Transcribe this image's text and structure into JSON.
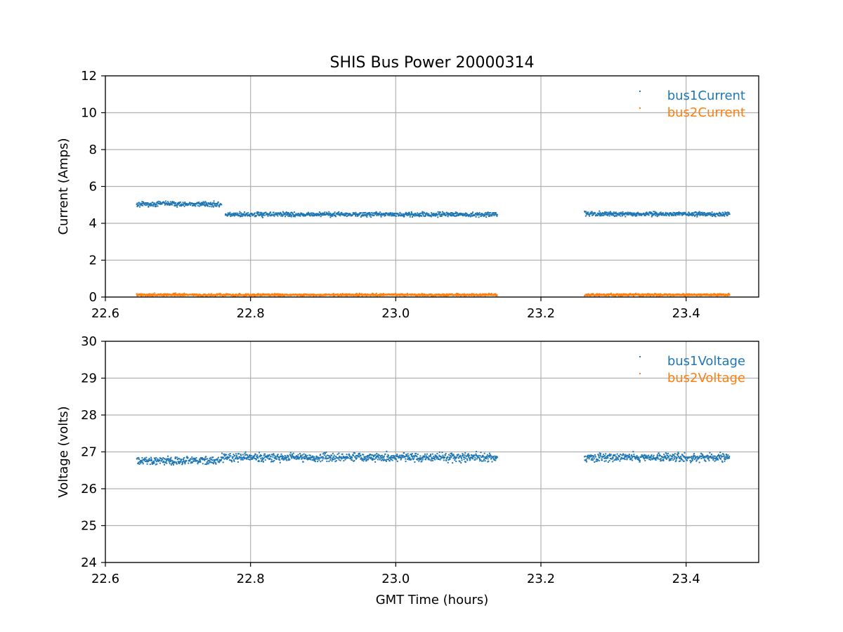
{
  "chart_data": [
    {
      "type": "scatter",
      "title": "SHIS Bus Power 20000314",
      "xlabel": "",
      "ylabel": "Current (Amps)",
      "xlim": [
        22.6,
        23.5
      ],
      "ylim": [
        0,
        12
      ],
      "xticks": [
        "22.6",
        "22.8",
        "23.0",
        "23.2",
        "23.4"
      ],
      "yticks": [
        "0",
        "2",
        "4",
        "6",
        "8",
        "10",
        "12"
      ],
      "grid": true,
      "legend": "top-right",
      "series": [
        {
          "name": "bus1Current",
          "color": "#1f77b4",
          "segments": [
            {
              "x_start": 22.643,
              "x_end": 22.76,
              "mean": 5.05,
              "spread": 0.13
            },
            {
              "x_start": 22.765,
              "x_end": 23.14,
              "mean": 4.48,
              "spread": 0.12
            },
            {
              "x_start": 23.26,
              "x_end": 23.46,
              "mean": 4.5,
              "spread": 0.12
            }
          ]
        },
        {
          "name": "bus2Current",
          "color": "#ff7f0e",
          "segments": [
            {
              "x_start": 22.643,
              "x_end": 23.14,
              "mean": 0.12,
              "spread": 0.06
            },
            {
              "x_start": 23.26,
              "x_end": 23.46,
              "mean": 0.12,
              "spread": 0.06
            }
          ]
        }
      ]
    },
    {
      "type": "scatter",
      "title": "",
      "xlabel": "GMT Time (hours)",
      "ylabel": "Voltage (volts)",
      "xlim": [
        22.6,
        23.5
      ],
      "ylim": [
        24,
        30
      ],
      "xticks": [
        "22.6",
        "22.8",
        "23.0",
        "23.2",
        "23.4"
      ],
      "yticks": [
        "24",
        "25",
        "26",
        "27",
        "28",
        "29",
        "30"
      ],
      "grid": true,
      "legend": "top-right",
      "series": [
        {
          "name": "bus1Voltage",
          "color": "#1f77b4",
          "segments": [
            {
              "x_start": 22.643,
              "x_end": 22.76,
              "mean": 26.76,
              "spread": 0.11
            },
            {
              "x_start": 22.76,
              "x_end": 23.14,
              "mean": 26.85,
              "spread": 0.11
            },
            {
              "x_start": 23.26,
              "x_end": 23.46,
              "mean": 26.85,
              "spread": 0.11
            }
          ]
        },
        {
          "name": "bus2Voltage",
          "color": "#ff7f0e",
          "segments": []
        }
      ]
    }
  ]
}
